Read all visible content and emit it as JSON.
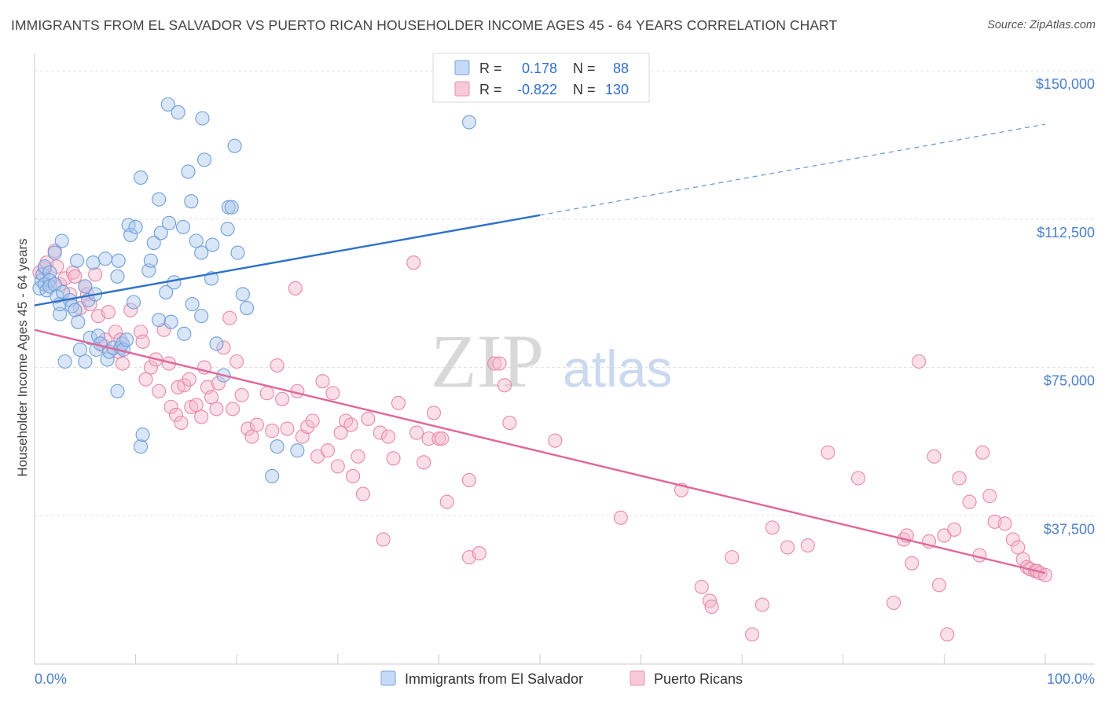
{
  "header": {
    "title": "IMMIGRANTS FROM EL SALVADOR VS PUERTO RICAN HOUSEHOLDER INCOME AGES 45 - 64 YEARS CORRELATION CHART",
    "source": "Source: ZipAtlas.com"
  },
  "watermark": {
    "part1": "ZIP",
    "part2": "atlas"
  },
  "colors": {
    "blue_fill": "#aac8f0",
    "blue_stroke": "#6f9fd8",
    "blue_line": "#2f72c9",
    "pink_fill": "#f5b7cb",
    "pink_stroke": "#e888a8",
    "pink_line": "#e0679a",
    "tick_label": "#4a7fcf",
    "grid": "#e3e3e3"
  },
  "legend_box": {
    "rows": [
      {
        "r_label": "R =",
        "r_value": "0.178",
        "n_label": "N =",
        "n_value": "88"
      },
      {
        "r_label": "R =",
        "r_value": "-0.822",
        "n_label": "N =",
        "n_value": "130"
      }
    ]
  },
  "chart_data": {
    "type": "scatter",
    "title": "IMMIGRANTS FROM EL SALVADOR VS PUERTO RICAN HOUSEHOLDER INCOME AGES 45 - 64 YEARS CORRELATION CHART",
    "xlabel": "",
    "ylabel": "Householder Income Ages 45 - 64 years",
    "xlim": [
      0,
      100
    ],
    "ylim": [
      0,
      153000
    ],
    "x_tick_labels": [
      "0.0%",
      "100.0%"
    ],
    "y_ticks": [
      37500,
      75000,
      112500,
      150000
    ],
    "y_tick_labels": [
      "$37,500",
      "$75,000",
      "$112,500",
      "$150,000"
    ],
    "grid": true,
    "legend_position": "bottom-center",
    "series": [
      {
        "name": "Immigrants from El Salvador",
        "color": "#6f9fd8",
        "trend": {
          "x0": 0,
          "y0": 90700,
          "x1": 50,
          "y1": 113500,
          "dashed_to_x": 100,
          "dashed_to_y": 136500
        },
        "points": [
          [
            0.5,
            95000
          ],
          [
            0.7,
            97000
          ],
          [
            0.8,
            98500
          ],
          [
            1.0,
            100500
          ],
          [
            1.0,
            96000
          ],
          [
            1.2,
            94500
          ],
          [
            1.5,
            99000
          ],
          [
            1.5,
            97000
          ],
          [
            1.5,
            95500
          ],
          [
            2.0,
            104000
          ],
          [
            2.0,
            96000
          ],
          [
            2.2,
            93000
          ],
          [
            2.5,
            88500
          ],
          [
            2.5,
            91000
          ],
          [
            2.7,
            107000
          ],
          [
            2.8,
            94000
          ],
          [
            3.0,
            76500
          ],
          [
            3.5,
            92000
          ],
          [
            3.7,
            90500
          ],
          [
            4.0,
            89500
          ],
          [
            4.2,
            102000
          ],
          [
            4.3,
            86500
          ],
          [
            4.5,
            79500
          ],
          [
            5.0,
            76500
          ],
          [
            5.0,
            95500
          ],
          [
            5.3,
            92000
          ],
          [
            5.5,
            82500
          ],
          [
            5.8,
            101500
          ],
          [
            6.0,
            93500
          ],
          [
            6.1,
            79500
          ],
          [
            6.3,
            83000
          ],
          [
            6.5,
            81000
          ],
          [
            7.0,
            102500
          ],
          [
            7.2,
            77000
          ],
          [
            7.4,
            79000
          ],
          [
            7.8,
            80000
          ],
          [
            8.2,
            98000
          ],
          [
            8.3,
            102000
          ],
          [
            8.5,
            80000
          ],
          [
            8.7,
            81000
          ],
          [
            8.8,
            79500
          ],
          [
            8.2,
            69000
          ],
          [
            9.1,
            82000
          ],
          [
            9.3,
            111000
          ],
          [
            9.5,
            108500
          ],
          [
            9.8,
            91500
          ],
          [
            10.0,
            110500
          ],
          [
            10.5,
            123000
          ],
          [
            10.5,
            55000
          ],
          [
            10.7,
            58000
          ],
          [
            11.3,
            99500
          ],
          [
            11.5,
            102000
          ],
          [
            11.8,
            106500
          ],
          [
            12.3,
            87000
          ],
          [
            12.3,
            117500
          ],
          [
            12.5,
            109000
          ],
          [
            13.0,
            94000
          ],
          [
            13.3,
            111500
          ],
          [
            13.5,
            86500
          ],
          [
            13.2,
            141500
          ],
          [
            13.8,
            96500
          ],
          [
            14.2,
            139500
          ],
          [
            14.7,
            110500
          ],
          [
            14.8,
            83500
          ],
          [
            15.2,
            124500
          ],
          [
            15.5,
            117000
          ],
          [
            15.6,
            91000
          ],
          [
            16.0,
            107000
          ],
          [
            16.5,
            88000
          ],
          [
            16.5,
            104000
          ],
          [
            16.6,
            138000
          ],
          [
            16.8,
            127500
          ],
          [
            17.5,
            97500
          ],
          [
            17.6,
            106000
          ],
          [
            18.0,
            81000
          ],
          [
            18.7,
            73000
          ],
          [
            19.1,
            110000
          ],
          [
            19.2,
            115500
          ],
          [
            19.5,
            115500
          ],
          [
            19.8,
            131000
          ],
          [
            20.1,
            104000
          ],
          [
            20.6,
            93500
          ],
          [
            21.0,
            90000
          ],
          [
            23.5,
            47500
          ],
          [
            24.0,
            55000
          ],
          [
            26.0,
            54000
          ],
          [
            43.0,
            137000
          ]
        ]
      },
      {
        "name": "Puerto Ricans",
        "color": "#e888a8",
        "trend": {
          "x0": 0,
          "y0": 84500,
          "x1": 100,
          "y1": 23000
        },
        "points": [
          [
            0.5,
            99000
          ],
          [
            1.0,
            100000
          ],
          [
            1.2,
            101500
          ],
          [
            1.5,
            97000
          ],
          [
            2.0,
            104500
          ],
          [
            2.2,
            100500
          ],
          [
            2.5,
            96000
          ],
          [
            3.0,
            97500
          ],
          [
            3.5,
            93500
          ],
          [
            3.8,
            99000
          ],
          [
            4.0,
            98000
          ],
          [
            4.5,
            90000
          ],
          [
            5.0,
            95500
          ],
          [
            5.2,
            93500
          ],
          [
            5.5,
            91000
          ],
          [
            6.0,
            98500
          ],
          [
            6.3,
            88000
          ],
          [
            6.8,
            80500
          ],
          [
            7.0,
            82000
          ],
          [
            7.3,
            89000
          ],
          [
            8.0,
            84000
          ],
          [
            8.3,
            79000
          ],
          [
            8.5,
            82000
          ],
          [
            8.7,
            76000
          ],
          [
            9.5,
            89500
          ],
          [
            10.5,
            84000
          ],
          [
            10.7,
            81500
          ],
          [
            11.0,
            72000
          ],
          [
            11.5,
            75000
          ],
          [
            12.0,
            77000
          ],
          [
            12.3,
            69000
          ],
          [
            12.8,
            84500
          ],
          [
            13.3,
            76000
          ],
          [
            13.5,
            65000
          ],
          [
            14.0,
            63000
          ],
          [
            14.2,
            70000
          ],
          [
            14.5,
            61000
          ],
          [
            14.8,
            70500
          ],
          [
            15.3,
            72000
          ],
          [
            15.5,
            65000
          ],
          [
            16.0,
            65500
          ],
          [
            16.5,
            62500
          ],
          [
            16.8,
            75000
          ],
          [
            17.1,
            70000
          ],
          [
            17.5,
            67500
          ],
          [
            18.0,
            64500
          ],
          [
            18.2,
            71000
          ],
          [
            18.7,
            80000
          ],
          [
            19.3,
            87500
          ],
          [
            19.6,
            64500
          ],
          [
            20.0,
            76500
          ],
          [
            20.5,
            68000
          ],
          [
            21.1,
            59500
          ],
          [
            21.5,
            57500
          ],
          [
            22.0,
            60500
          ],
          [
            23.0,
            68500
          ],
          [
            23.5,
            59000
          ],
          [
            24.0,
            75500
          ],
          [
            24.5,
            67000
          ],
          [
            25.0,
            59500
          ],
          [
            25.8,
            95000
          ],
          [
            26.0,
            69000
          ],
          [
            26.5,
            57500
          ],
          [
            27.0,
            60000
          ],
          [
            27.5,
            61500
          ],
          [
            28.0,
            52500
          ],
          [
            28.5,
            71500
          ],
          [
            29.0,
            54000
          ],
          [
            29.5,
            68500
          ],
          [
            30.0,
            50000
          ],
          [
            30.3,
            58500
          ],
          [
            30.8,
            61500
          ],
          [
            31.3,
            60500
          ],
          [
            31.5,
            47500
          ],
          [
            32.0,
            52500
          ],
          [
            32.5,
            43000
          ],
          [
            33.0,
            62000
          ],
          [
            34.2,
            58500
          ],
          [
            34.5,
            31500
          ],
          [
            35.0,
            57500
          ],
          [
            35.5,
            52000
          ],
          [
            36.0,
            66000
          ],
          [
            37.5,
            101500
          ],
          [
            37.8,
            58500
          ],
          [
            38.5,
            51000
          ],
          [
            39.0,
            57000
          ],
          [
            39.5,
            63500
          ],
          [
            40.0,
            57000
          ],
          [
            40.3,
            57000
          ],
          [
            40.8,
            41000
          ],
          [
            43.0,
            46500
          ],
          [
            43.0,
            27000
          ],
          [
            44.0,
            28000
          ],
          [
            45.5,
            76000
          ],
          [
            46.0,
            76000
          ],
          [
            46.5,
            70500
          ],
          [
            47.0,
            61000
          ],
          [
            51.5,
            56500
          ],
          [
            58.0,
            37000
          ],
          [
            64.0,
            44000
          ],
          [
            66.0,
            19500
          ],
          [
            66.8,
            16000
          ],
          [
            67.0,
            14500
          ],
          [
            69.0,
            27000
          ],
          [
            71.0,
            7500
          ],
          [
            72.0,
            15000
          ],
          [
            73.0,
            34500
          ],
          [
            74.5,
            29500
          ],
          [
            76.5,
            30000
          ],
          [
            78.5,
            53500
          ],
          [
            81.5,
            47000
          ],
          [
            85.0,
            15500
          ],
          [
            86.0,
            31500
          ],
          [
            86.3,
            32500
          ],
          [
            86.8,
            25500
          ],
          [
            87.5,
            76500
          ],
          [
            88.5,
            31000
          ],
          [
            89.0,
            52500
          ],
          [
            89.5,
            20000
          ],
          [
            90.0,
            32500
          ],
          [
            90.3,
            7500
          ],
          [
            91.0,
            34000
          ],
          [
            91.5,
            47000
          ],
          [
            92.5,
            41000
          ],
          [
            93.5,
            27500
          ],
          [
            93.8,
            53500
          ],
          [
            94.5,
            42500
          ],
          [
            95.0,
            36000
          ],
          [
            96.0,
            35500
          ],
          [
            96.8,
            31500
          ],
          [
            97.3,
            29500
          ],
          [
            97.8,
            26500
          ],
          [
            98.2,
            24500
          ],
          [
            98.5,
            24000
          ],
          [
            99.0,
            23500
          ],
          [
            99.2,
            23500
          ],
          [
            99.5,
            23000
          ],
          [
            100.0,
            22500
          ]
        ]
      }
    ]
  },
  "bottom_legend": {
    "items": [
      {
        "label": "Immigrants from El Salvador"
      },
      {
        "label": "Puerto Ricans"
      }
    ]
  }
}
